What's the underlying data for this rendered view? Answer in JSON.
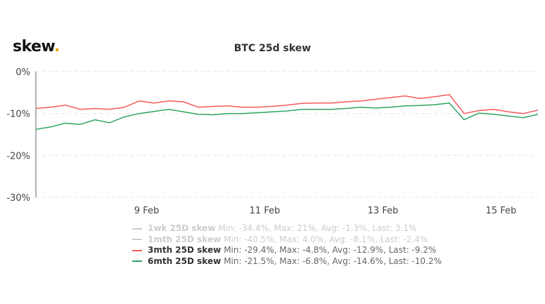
{
  "logo": {
    "text": "skew",
    "dot": ".",
    "dot_color": "#f0a30a"
  },
  "chart_data": {
    "type": "line",
    "title": "BTC 25d skew",
    "ylim": [
      -30,
      0
    ],
    "yticks": [
      0,
      -10,
      -20,
      -30
    ],
    "ytick_labels": [
      "0%",
      "-10%",
      "-20%",
      "-30%"
    ],
    "xlim": [
      "Feb 7 03:00",
      "Feb 15 15:00"
    ],
    "xticks": [
      "Feb 9 00:00",
      "Feb 11 00:00",
      "Feb 13 00:00",
      "Feb 15 00:00"
    ],
    "xtick_labels": [
      "9 Feb",
      "11 Feb",
      "13 Feb",
      "15 Feb"
    ],
    "grid": "horizontal dashed",
    "legend_placement": "bottom",
    "x": [
      "Feb 7 03:00",
      "Feb 7 09:00",
      "Feb 7 15:00",
      "Feb 7 21:00",
      "Feb 8 03:00",
      "Feb 8 09:00",
      "Feb 8 15:00",
      "Feb 8 21:00",
      "Feb 9 03:00",
      "Feb 9 09:00",
      "Feb 9 15:00",
      "Feb 9 21:00",
      "Feb 10 03:00",
      "Feb 10 09:00",
      "Feb 10 15:00",
      "Feb 10 21:00",
      "Feb 11 03:00",
      "Feb 11 09:00",
      "Feb 11 15:00",
      "Feb 11 21:00",
      "Feb 12 03:00",
      "Feb 12 09:00",
      "Feb 12 15:00",
      "Feb 12 21:00",
      "Feb 13 03:00",
      "Feb 13 09:00",
      "Feb 13 15:00",
      "Feb 13 21:00",
      "Feb 14 03:00",
      "Feb 14 09:00",
      "Feb 14 15:00",
      "Feb 14 21:00",
      "Feb 15 03:00",
      "Feb 15 09:00",
      "Feb 15 15:00"
    ],
    "series": [
      {
        "name": "1wk 25D skew",
        "visible": false,
        "color": "#cccccc",
        "stats": "Min: -34.4%, Max: 21%, Avg: -1.3%, Last: 3.1%"
      },
      {
        "name": "1mth 25D skew",
        "visible": false,
        "color": "#cccccc",
        "stats": "Min: -40.5%, Max: 4.0%, Avg: -8.1%, Last: -2.4%"
      },
      {
        "name": "3mth 25D skew",
        "visible": true,
        "color": "#f45b5b",
        "stats": "Min: -29.4%, Max: -4.8%, Avg: -12.9%, Last: -9.2%",
        "values": [
          -8.8,
          -8.5,
          -8,
          -9,
          -8.8,
          -9,
          -8.5,
          -7,
          -7.5,
          -7,
          -7.2,
          -8.5,
          -8.3,
          -8.2,
          -8.5,
          -8.5,
          -8.3,
          -8,
          -7.6,
          -7.5,
          -7.5,
          -7.2,
          -7,
          -6.6,
          -6.2,
          -5.8,
          -6.4,
          -6,
          -5.5,
          -10,
          -9.3,
          -9,
          -9.6,
          -10,
          -9.2
        ]
      },
      {
        "name": "6mth 25D skew",
        "visible": true,
        "color": "#2ea562",
        "stats": "Min: -21.5%, Max: -6.8%, Avg: -14.6%, Last: -10.2%",
        "values": [
          -13.8,
          -13.2,
          -12.3,
          -12.6,
          -11.5,
          -12.2,
          -10.8,
          -10,
          -9.5,
          -9,
          -9.6,
          -10.2,
          -10.3,
          -10,
          -10,
          -9.8,
          -9.6,
          -9.4,
          -9,
          -9,
          -9,
          -8.8,
          -8.5,
          -8.7,
          -8.5,
          -8.2,
          -8.1,
          -7.9,
          -7.5,
          -11.5,
          -9.9,
          -10.2,
          -10.6,
          -11,
          -10.2
        ]
      }
    ]
  }
}
